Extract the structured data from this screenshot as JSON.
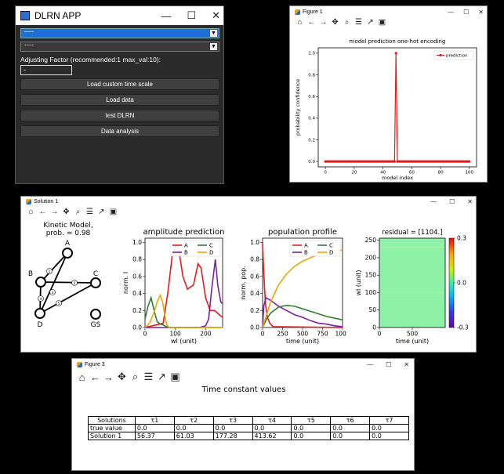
{
  "dlrn": {
    "title": "DLRN APP",
    "dropdown1_value": "----",
    "dropdown2_value": "----",
    "factor_label": "Adjusting Factor (recommended:1 max_val:10):",
    "factor_value": "-",
    "buttons": [
      "Load custom time scale",
      "Load data",
      "test DLRN",
      "Data analysis"
    ],
    "win_min": "—",
    "win_max": "☐",
    "win_close": "✕"
  },
  "fig1": {
    "title": "Figure 1",
    "win_min": "—",
    "win_max": "☐",
    "win_close": "✕",
    "toolbar": [
      "⌂",
      "←",
      "→",
      "✥",
      "⌕",
      "☰",
      "↗",
      "▣"
    ]
  },
  "sol": {
    "title": "Solution 1",
    "win_min": "—",
    "win_max": "☐",
    "win_close": "✕",
    "toolbar": [
      "⌂",
      "←",
      "→",
      "✥",
      "⌕",
      "☰",
      "↗",
      "▣"
    ],
    "kinetic": {
      "title_line1": "Kinetic Model,",
      "title_line2": "prob. = 0.98",
      "nodes": [
        "A",
        "B",
        "C",
        "D",
        "GS"
      ],
      "edge_labels": [
        "1",
        "2",
        "3",
        "4",
        "5"
      ]
    }
  },
  "fig3": {
    "title": "Figure 3",
    "win_min": "—",
    "win_max": "☐",
    "win_close": "✕",
    "toolbar": [
      "⌂",
      "←",
      "→",
      "✥",
      "⌕",
      "☰",
      "↗",
      "▣"
    ]
  },
  "chart_data": [
    {
      "id": "onehot",
      "type": "line",
      "title": "model prediction one-hot encoding",
      "xlabel": "model index",
      "ylabel": "probability confidence",
      "xlim": [
        -5,
        105
      ],
      "ylim": [
        -0.05,
        1.05
      ],
      "xticks": [
        0,
        20,
        40,
        60,
        80,
        100
      ],
      "yticks": [
        0.0,
        0.2,
        0.4,
        0.6,
        0.8,
        1.0
      ],
      "series": [
        {
          "name": "prediction",
          "color": "#e41a1c",
          "peak_index": 49,
          "peak_value": 1.0,
          "n_points": 101
        }
      ]
    },
    {
      "id": "amplitude",
      "type": "line",
      "title": "amplitude prediction",
      "xlabel": "wl (unit)",
      "ylabel": "norm. I",
      "xlim": [
        0,
        256
      ],
      "ylim": [
        0,
        1.05
      ],
      "xticks": [
        0,
        100,
        200
      ],
      "yticks": [
        0.0,
        0.2,
        0.4,
        0.6,
        0.8,
        1.0
      ],
      "series": [
        {
          "name": "A",
          "color": "#e41a1c",
          "points": [
            [
              0,
              0
            ],
            [
              60,
              0.05
            ],
            [
              75,
              0.4
            ],
            [
              90,
              0.85
            ],
            [
              102,
              0.98
            ],
            [
              112,
              0.9
            ],
            [
              125,
              0.6
            ],
            [
              140,
              0.45
            ],
            [
              160,
              0.5
            ],
            [
              175,
              0.75
            ],
            [
              185,
              0.7
            ],
            [
              200,
              0.35
            ],
            [
              215,
              0.2
            ],
            [
              230,
              0.2
            ],
            [
              245,
              0.15
            ],
            [
              256,
              0.12
            ]
          ]
        },
        {
          "name": "B",
          "color": "#7b1fa2",
          "points": [
            [
              0,
              0
            ],
            [
              180,
              0
            ],
            [
              200,
              0.02
            ],
            [
              210,
              0.1
            ],
            [
              220,
              0.45
            ],
            [
              232,
              0.8
            ],
            [
              240,
              0.5
            ],
            [
              250,
              0.3
            ],
            [
              256,
              0.28
            ]
          ]
        },
        {
          "name": "C",
          "color": "#2e7d32",
          "points": [
            [
              0,
              0.1
            ],
            [
              10,
              0.25
            ],
            [
              20,
              0.35
            ],
            [
              30,
              0.2
            ],
            [
              40,
              0.07
            ],
            [
              50,
              0.04
            ],
            [
              60,
              0.03
            ],
            [
              70,
              0.01
            ],
            [
              80,
              0
            ],
            [
              256,
              0
            ]
          ]
        },
        {
          "name": "D",
          "color": "#f0a500",
          "points": [
            [
              0,
              0
            ],
            [
              15,
              0.05
            ],
            [
              30,
              0.18
            ],
            [
              40,
              0.3
            ],
            [
              50,
              0.38
            ],
            [
              58,
              0.3
            ],
            [
              65,
              0.15
            ],
            [
              72,
              0.03
            ],
            [
              80,
              0
            ],
            [
              256,
              0
            ]
          ]
        }
      ]
    },
    {
      "id": "population",
      "type": "line",
      "title": "population profile",
      "xlabel": "time (unit)",
      "ylabel": "norm. pop.",
      "xlim": [
        0,
        1000
      ],
      "ylim": [
        0,
        1.05
      ],
      "xticks": [
        0,
        250,
        500,
        750,
        1000
      ],
      "yticks": [
        0.0,
        0.2,
        0.4,
        0.6,
        0.8,
        1.0
      ],
      "series": [
        {
          "name": "A",
          "color": "#e41a1c",
          "points": [
            [
              0,
              1.0
            ],
            [
              10,
              0.75
            ],
            [
              25,
              0.45
            ],
            [
              40,
              0.25
            ],
            [
              60,
              0.12
            ],
            [
              90,
              0.05
            ],
            [
              130,
              0.01
            ],
            [
              1000,
              0
            ]
          ]
        },
        {
          "name": "B",
          "color": "#7b1fa2",
          "points": [
            [
              0,
              0
            ],
            [
              15,
              0.25
            ],
            [
              40,
              0.35
            ],
            [
              100,
              0.32
            ],
            [
              200,
              0.25
            ],
            [
              300,
              0.2
            ],
            [
              400,
              0.15
            ],
            [
              500,
              0.12
            ],
            [
              600,
              0.08
            ],
            [
              700,
              0.05
            ],
            [
              800,
              0.04
            ],
            [
              900,
              0.02
            ],
            [
              1000,
              0.01
            ]
          ]
        },
        {
          "name": "C",
          "color": "#2e7d32",
          "points": [
            [
              0,
              0
            ],
            [
              50,
              0.1
            ],
            [
              100,
              0.17
            ],
            [
              200,
              0.24
            ],
            [
              300,
              0.26
            ],
            [
              400,
              0.25
            ],
            [
              500,
              0.22
            ],
            [
              600,
              0.19
            ],
            [
              700,
              0.16
            ],
            [
              800,
              0.13
            ],
            [
              900,
              0.11
            ],
            [
              1000,
              0.09
            ]
          ]
        },
        {
          "name": "D",
          "color": "#f0a500",
          "points": [
            [
              0,
              0
            ],
            [
              50,
              0.15
            ],
            [
              100,
              0.3
            ],
            [
              200,
              0.5
            ],
            [
              300,
              0.63
            ],
            [
              400,
              0.72
            ],
            [
              500,
              0.78
            ],
            [
              600,
              0.82
            ],
            [
              700,
              0.86
            ],
            [
              800,
              0.88
            ],
            [
              900,
              0.9
            ],
            [
              1000,
              0.91
            ]
          ]
        }
      ]
    },
    {
      "id": "residual",
      "type": "heatmap",
      "title": "residual = [1104.]",
      "xlabel": "time (unit)",
      "ylabel": "wl (unit)",
      "xlim": [
        0,
        1000
      ],
      "ylim": [
        0,
        256
      ],
      "xticks": [
        0,
        500
      ],
      "yticks": [
        0,
        50,
        100,
        150,
        200,
        250
      ],
      "colorbar_ticks": [
        0.3,
        0.0,
        -0.3
      ],
      "colorbar_range": [
        -0.3,
        0.3
      ]
    }
  ],
  "fig3_table": {
    "title": "Time constant values",
    "headers": [
      "Solutions",
      "τ1",
      "τ2",
      "τ3",
      "τ4",
      "τ5",
      "τ6",
      "τ7"
    ],
    "rows": [
      [
        "true value",
        "0.0",
        "0.0",
        "0.0",
        "0.0",
        "0.0",
        "0.0",
        "0.0"
      ],
      [
        "Solution 1",
        "56.37",
        "61.03",
        "177.28",
        "413.62",
        "0.0",
        "0.0",
        "0.0"
      ]
    ]
  }
}
